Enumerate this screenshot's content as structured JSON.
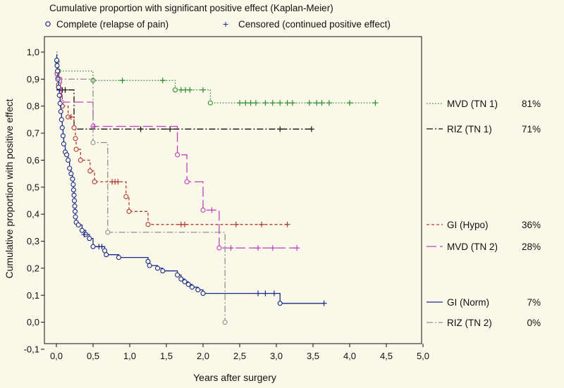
{
  "chart_data": {
    "type": "line",
    "title": "Cumulative proportion with significant positive effect (Kaplan-Meier)",
    "legend": [
      {
        "marker": "o",
        "label": "Complete (relapse of pain)"
      },
      {
        "marker": "+",
        "label": "Censored (continued positive effect)"
      }
    ],
    "xlabel": "Years after surgery",
    "ylabel": "Cumulative proportion with positive effect",
    "xlim": [
      0,
      5
    ],
    "ylim": [
      -0.1,
      1.0
    ],
    "xticks": [
      "0,0",
      "0,5",
      "1,0",
      "1,5",
      "2,0",
      "2,5",
      "3,0",
      "3,5",
      "4,0",
      "4,5",
      "5,0"
    ],
    "yticks": [
      "-0,1",
      "0,0",
      "0,1",
      "0,2",
      "0,3",
      "0,4",
      "0,5",
      "0,6",
      "0,7",
      "0,8",
      "0,9",
      "1,0"
    ],
    "series": [
      {
        "name": "MVD (TN 1)",
        "final_label": "81%",
        "color": "#2e8b2e",
        "style": "dotted",
        "steps": [
          [
            0,
            1.0
          ],
          [
            0.01,
            0.965
          ],
          [
            0.03,
            0.93
          ],
          [
            0.5,
            0.895
          ],
          [
            1.62,
            0.86
          ],
          [
            2.1,
            0.812
          ],
          [
            4.35,
            0.812
          ]
        ],
        "events": [
          [
            0.01,
            0.965
          ],
          [
            0.03,
            0.93
          ],
          [
            0.5,
            0.895
          ],
          [
            1.62,
            0.86
          ],
          [
            2.1,
            0.812
          ]
        ],
        "censored": [
          [
            0.9,
            0.895
          ],
          [
            1.45,
            0.895
          ],
          [
            1.7,
            0.86
          ],
          [
            1.76,
            0.86
          ],
          [
            1.82,
            0.86
          ],
          [
            2.0,
            0.86
          ],
          [
            2.5,
            0.812
          ],
          [
            2.58,
            0.812
          ],
          [
            2.65,
            0.812
          ],
          [
            2.72,
            0.812
          ],
          [
            2.85,
            0.812
          ],
          [
            2.95,
            0.812
          ],
          [
            3.05,
            0.812
          ],
          [
            3.15,
            0.812
          ],
          [
            3.22,
            0.812
          ],
          [
            3.45,
            0.812
          ],
          [
            3.55,
            0.812
          ],
          [
            3.62,
            0.812
          ],
          [
            3.72,
            0.812
          ],
          [
            4.0,
            0.812
          ],
          [
            4.35,
            0.812
          ]
        ]
      },
      {
        "name": "RIZ (TN 1)",
        "final_label": "71%",
        "color": "#111111",
        "style": "dashdot",
        "steps": [
          [
            0,
            0.86
          ],
          [
            0.24,
            0.715
          ],
          [
            3.48,
            0.715
          ]
        ],
        "events": [],
        "censored": [
          [
            0.08,
            0.86
          ],
          [
            0.12,
            0.86
          ],
          [
            1.15,
            0.715
          ],
          [
            1.55,
            0.715
          ],
          [
            3.05,
            0.715
          ],
          [
            3.48,
            0.715
          ]
        ]
      },
      {
        "name": "GI (Hypo)",
        "final_label": "36%",
        "color": "#b03a30",
        "style": "dashed",
        "steps": [
          [
            0,
            0.96
          ],
          [
            0.01,
            0.92
          ],
          [
            0.03,
            0.88
          ],
          [
            0.05,
            0.84
          ],
          [
            0.08,
            0.8
          ],
          [
            0.16,
            0.76
          ],
          [
            0.24,
            0.72
          ],
          [
            0.26,
            0.68
          ],
          [
            0.27,
            0.64
          ],
          [
            0.33,
            0.6
          ],
          [
            0.46,
            0.56
          ],
          [
            0.52,
            0.52
          ],
          [
            0.95,
            0.465
          ],
          [
            0.99,
            0.41
          ],
          [
            1.25,
            0.362
          ],
          [
            3.15,
            0.362
          ]
        ],
        "events": [
          [
            0.01,
            0.92
          ],
          [
            0.03,
            0.88
          ],
          [
            0.05,
            0.84
          ],
          [
            0.08,
            0.8
          ],
          [
            0.16,
            0.76
          ],
          [
            0.24,
            0.72
          ],
          [
            0.26,
            0.68
          ],
          [
            0.27,
            0.64
          ],
          [
            0.33,
            0.6
          ],
          [
            0.46,
            0.56
          ],
          [
            0.52,
            0.52
          ],
          [
            0.95,
            0.465
          ],
          [
            0.99,
            0.41
          ],
          [
            1.25,
            0.362
          ]
        ],
        "censored": [
          [
            0.2,
            0.76
          ],
          [
            0.76,
            0.52
          ],
          [
            0.8,
            0.52
          ],
          [
            0.84,
            0.52
          ],
          [
            1.7,
            0.362
          ],
          [
            1.75,
            0.362
          ],
          [
            2.45,
            0.362
          ],
          [
            2.8,
            0.362
          ],
          [
            3.15,
            0.362
          ]
        ]
      },
      {
        "name": "MVD (TN 2)",
        "final_label": "28%",
        "color": "#c040c0",
        "style": "longdash",
        "steps": [
          [
            0,
            0.95
          ],
          [
            0.02,
            0.905
          ],
          [
            0.07,
            0.815
          ],
          [
            0.5,
            0.725
          ],
          [
            1.65,
            0.62
          ],
          [
            1.78,
            0.52
          ],
          [
            2.0,
            0.415
          ],
          [
            2.22,
            0.275
          ],
          [
            3.28,
            0.275
          ]
        ],
        "events": [
          [
            0.02,
            0.905
          ],
          [
            0.07,
            0.815
          ],
          [
            0.5,
            0.725
          ],
          [
            1.65,
            0.62
          ],
          [
            1.78,
            0.52
          ],
          [
            2.0,
            0.415
          ],
          [
            2.22,
            0.275
          ]
        ],
        "censored": [
          [
            0.52,
            0.725
          ],
          [
            2.12,
            0.415
          ],
          [
            2.38,
            0.275
          ],
          [
            2.75,
            0.275
          ],
          [
            2.95,
            0.275
          ],
          [
            3.28,
            0.275
          ]
        ]
      },
      {
        "name": "GI (Norm)",
        "final_label": "7%",
        "color": "#1a2a8a",
        "style": "solid",
        "steps": [
          [
            0,
            0.99
          ],
          [
            0.005,
            0.97
          ],
          [
            0.01,
            0.95
          ],
          [
            0.015,
            0.93
          ],
          [
            0.02,
            0.9
          ],
          [
            0.03,
            0.87
          ],
          [
            0.04,
            0.84
          ],
          [
            0.05,
            0.81
          ],
          [
            0.06,
            0.78
          ],
          [
            0.07,
            0.75
          ],
          [
            0.08,
            0.72
          ],
          [
            0.09,
            0.69
          ],
          [
            0.1,
            0.66
          ],
          [
            0.12,
            0.63
          ],
          [
            0.14,
            0.62
          ],
          [
            0.16,
            0.6
          ],
          [
            0.18,
            0.57
          ],
          [
            0.2,
            0.55
          ],
          [
            0.22,
            0.53
          ],
          [
            0.23,
            0.51
          ],
          [
            0.235,
            0.49
          ],
          [
            0.24,
            0.47
          ],
          [
            0.245,
            0.45
          ],
          [
            0.25,
            0.43
          ],
          [
            0.255,
            0.41
          ],
          [
            0.26,
            0.39
          ],
          [
            0.27,
            0.37
          ],
          [
            0.3,
            0.36
          ],
          [
            0.35,
            0.34
          ],
          [
            0.4,
            0.325
          ],
          [
            0.45,
            0.31
          ],
          [
            0.5,
            0.28
          ],
          [
            0.66,
            0.265
          ],
          [
            0.68,
            0.25
          ],
          [
            0.85,
            0.24
          ],
          [
            1.25,
            0.225
          ],
          [
            1.27,
            0.21
          ],
          [
            1.38,
            0.2
          ],
          [
            1.45,
            0.19
          ],
          [
            1.65,
            0.175
          ],
          [
            1.7,
            0.16
          ],
          [
            1.75,
            0.15
          ],
          [
            1.8,
            0.14
          ],
          [
            1.85,
            0.13
          ],
          [
            1.93,
            0.12
          ],
          [
            2.0,
            0.107
          ],
          [
            3.05,
            0.07
          ],
          [
            3.65,
            0.07
          ]
        ],
        "events": [
          [
            0.005,
            0.97
          ],
          [
            0.01,
            0.95
          ],
          [
            0.015,
            0.93
          ],
          [
            0.02,
            0.9
          ],
          [
            0.03,
            0.87
          ],
          [
            0.04,
            0.84
          ],
          [
            0.05,
            0.81
          ],
          [
            0.06,
            0.78
          ],
          [
            0.07,
            0.75
          ],
          [
            0.08,
            0.72
          ],
          [
            0.09,
            0.69
          ],
          [
            0.1,
            0.66
          ],
          [
            0.12,
            0.63
          ],
          [
            0.14,
            0.62
          ],
          [
            0.16,
            0.6
          ],
          [
            0.18,
            0.57
          ],
          [
            0.2,
            0.55
          ],
          [
            0.22,
            0.53
          ],
          [
            0.23,
            0.51
          ],
          [
            0.235,
            0.49
          ],
          [
            0.24,
            0.47
          ],
          [
            0.245,
            0.45
          ],
          [
            0.25,
            0.43
          ],
          [
            0.255,
            0.41
          ],
          [
            0.26,
            0.39
          ],
          [
            0.27,
            0.37
          ],
          [
            0.3,
            0.36
          ],
          [
            0.35,
            0.34
          ],
          [
            0.4,
            0.325
          ],
          [
            0.45,
            0.31
          ],
          [
            0.5,
            0.28
          ],
          [
            0.66,
            0.265
          ],
          [
            0.68,
            0.25
          ],
          [
            0.85,
            0.24
          ],
          [
            1.25,
            0.225
          ],
          [
            1.27,
            0.21
          ],
          [
            1.38,
            0.2
          ],
          [
            1.45,
            0.19
          ],
          [
            1.65,
            0.175
          ],
          [
            1.7,
            0.16
          ],
          [
            1.75,
            0.15
          ],
          [
            1.8,
            0.14
          ],
          [
            1.85,
            0.13
          ],
          [
            1.93,
            0.12
          ],
          [
            2.0,
            0.107
          ],
          [
            3.05,
            0.07
          ]
        ],
        "censored": [
          [
            0.38,
            0.325
          ],
          [
            0.58,
            0.28
          ],
          [
            0.62,
            0.28
          ],
          [
            2.75,
            0.107
          ],
          [
            2.85,
            0.107
          ],
          [
            2.97,
            0.107
          ],
          [
            3.65,
            0.07
          ]
        ]
      },
      {
        "name": "RIZ (TN 2)",
        "final_label": "0%",
        "color": "#909090",
        "style": "dashdot",
        "steps": [
          [
            0,
            0.9
          ],
          [
            0.5,
            0.665
          ],
          [
            0.7,
            0.333
          ],
          [
            2.3,
            0.0
          ]
        ],
        "events": [
          [
            0.5,
            0.665
          ],
          [
            0.7,
            0.333
          ],
          [
            2.3,
            0.0
          ]
        ],
        "censored": []
      }
    ],
    "grid": false,
    "legend_position": "top"
  }
}
